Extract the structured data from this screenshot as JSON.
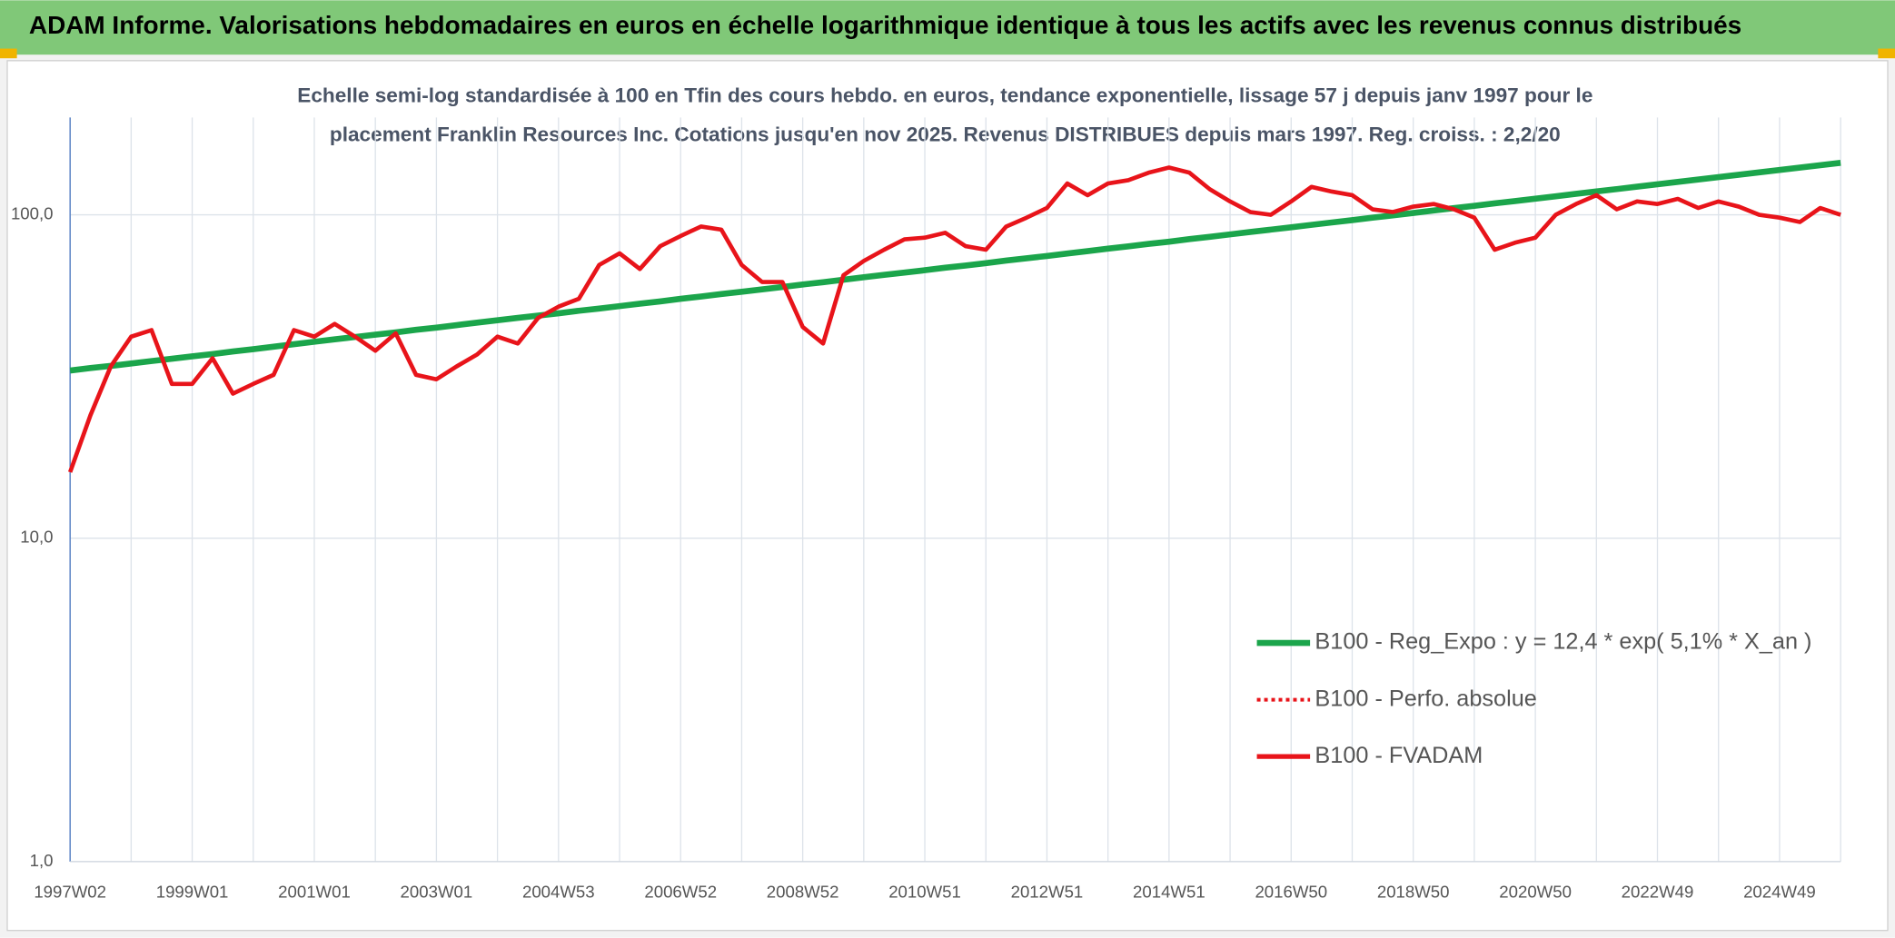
{
  "header": {
    "title": "ADAM Informe. Valorisations hebdomadaires en euros en échelle logarithmique identique à tous les actifs avec les revenus connus distribués"
  },
  "chart_data": {
    "type": "line",
    "title_lines": [
      "Echelle semi-log standardisée à 100 en Tfin des cours hebdo. en euros, tendance exponentielle, lissage 57 j depuis janv 1997 pour le",
      "placement Franklin Resources Inc. Cotations jusqu'en nov 2025. Revenus DISTRIBUES depuis mars 1997. Reg. croiss. : 2,2/20"
    ],
    "log_scale": true,
    "grid": true,
    "legend": "bottom-right",
    "ylim": [
      1,
      200
    ],
    "yticks": [
      {
        "value": 1,
        "label": "1,0"
      },
      {
        "value": 10,
        "label": "10,0"
      },
      {
        "value": 100,
        "label": "100,0"
      }
    ],
    "categories": [
      "1997W02",
      null,
      null,
      null,
      null,
      null,
      "1999W01",
      null,
      null,
      null,
      null,
      null,
      "2001W01",
      null,
      null,
      null,
      null,
      null,
      "2003W01",
      null,
      null,
      null,
      null,
      null,
      "2004W53",
      null,
      null,
      null,
      null,
      null,
      "2006W52",
      null,
      null,
      null,
      null,
      null,
      "2008W52",
      null,
      null,
      null,
      null,
      null,
      "2010W51",
      null,
      null,
      null,
      null,
      null,
      "2012W51",
      null,
      null,
      null,
      null,
      null,
      "2014W51",
      null,
      null,
      null,
      null,
      null,
      "2016W50",
      null,
      null,
      null,
      null,
      null,
      "2018W50",
      null,
      null,
      null,
      null,
      null,
      "2020W50",
      null,
      null,
      null,
      null,
      null,
      "2022W49",
      null,
      null,
      null,
      null,
      null,
      "2024W49",
      null,
      null,
      null
    ],
    "series": [
      {
        "name": "B100 - Reg_Expo : y = 12,4 * exp( 5,1% *  X_an )",
        "color": "#1ba54b",
        "style": "solid",
        "values": [
          33.0,
          33.6,
          34.1,
          34.7,
          35.3,
          35.9,
          36.5,
          37.1,
          37.8,
          38.4,
          39.1,
          39.8,
          40.5,
          41.2,
          41.9,
          42.6,
          43.3,
          44.1,
          44.8,
          45.6,
          46.4,
          47.2,
          48.0,
          48.8,
          49.6,
          50.5,
          51.3,
          52.2,
          53.1,
          54.0,
          55.0,
          55.9,
          56.9,
          57.8,
          58.8,
          59.8,
          60.9,
          61.9,
          63.0,
          64.1,
          65.2,
          66.3,
          67.4,
          68.6,
          69.7,
          70.9,
          72.2,
          73.4,
          74.6,
          75.9,
          77.2,
          78.6,
          79.9,
          81.3,
          82.6,
          84.1,
          85.5,
          87.0,
          88.5,
          90.0,
          91.5,
          93.1,
          94.7,
          96.3,
          98.0,
          99.6,
          101.3,
          103.1,
          104.9,
          106.6,
          108.5,
          110.3,
          112.2,
          114.1,
          116.1,
          118.1,
          120.1,
          122.2,
          124.3,
          126.4,
          128.6,
          130.8,
          133.0,
          135.3,
          137.6,
          140.0,
          142.4,
          144.8
        ]
      },
      {
        "name": "B100 - Perfo. absolue",
        "color": "#e8141a",
        "style": "dotted",
        "values": [
          null,
          null,
          null,
          null,
          null,
          null,
          null,
          null,
          null,
          null,
          null,
          null,
          null,
          null,
          null,
          null,
          null,
          null,
          null,
          null,
          null,
          null,
          null,
          null,
          null,
          null,
          null,
          null,
          null,
          null,
          null,
          null,
          null,
          null,
          null,
          null,
          null,
          null,
          null,
          null,
          null,
          null,
          null,
          null,
          null,
          null,
          null,
          null,
          null,
          null,
          null,
          null,
          null,
          null,
          null,
          null,
          null,
          null,
          null,
          null,
          null,
          null,
          null,
          null,
          null,
          null,
          null,
          null,
          null,
          null,
          null,
          null,
          null,
          null,
          null,
          null,
          null,
          null,
          null,
          null,
          null,
          null,
          null,
          null,
          null,
          null,
          null,
          null
        ]
      },
      {
        "name": "B100 - FVADAM",
        "color": "#e8141a",
        "style": "solid",
        "values": [
          16,
          24,
          34,
          42,
          44,
          30,
          30,
          36,
          28,
          30,
          32,
          44,
          42,
          46,
          42,
          38,
          43,
          32,
          31,
          34,
          37,
          42,
          40,
          48,
          52,
          55,
          70,
          76,
          68,
          80,
          86,
          92,
          90,
          70,
          62,
          62,
          45,
          40,
          65,
          72,
          78,
          84,
          85,
          88,
          80,
          78,
          92,
          98,
          105,
          125,
          115,
          125,
          128,
          135,
          140,
          135,
          120,
          110,
          102,
          100,
          110,
          122,
          118,
          115,
          104,
          102,
          106,
          108,
          104,
          98,
          78,
          82,
          85,
          100,
          108,
          115,
          104,
          110,
          108,
          112,
          105,
          110,
          106,
          100,
          98,
          95,
          105,
          100
        ]
      }
    ]
  }
}
